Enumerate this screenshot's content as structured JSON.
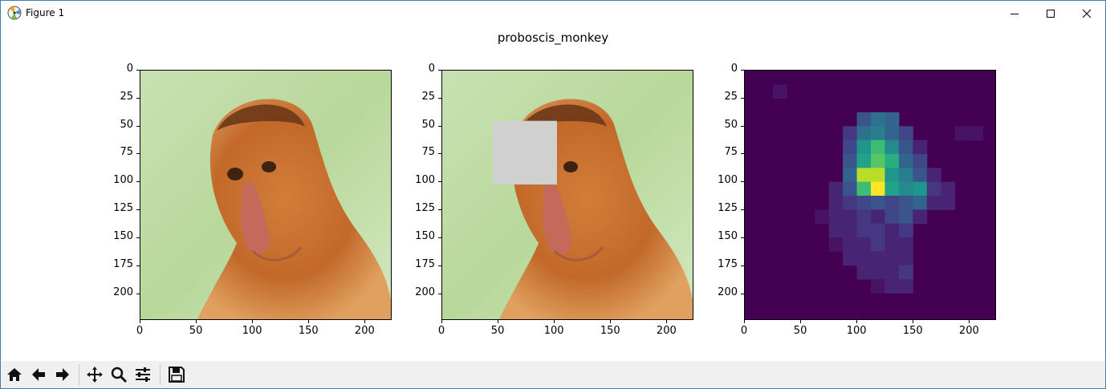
{
  "window": {
    "title": "Figure 1"
  },
  "figure": {
    "suptitle": "proboscis_monkey",
    "panels": [
      {
        "name": "original-image",
        "occluder": null
      },
      {
        "name": "occluded-image",
        "occluder": {
          "x0": 45,
          "x1": 102,
          "y0": 45,
          "y1": 102,
          "color": "#d0d0d0"
        }
      },
      {
        "name": "occlusion-heatmap",
        "colormap": "viridis"
      }
    ],
    "axes": {
      "xlim": [
        0,
        224
      ],
      "ylim": [
        224,
        0
      ],
      "xticks": [
        "0",
        "50",
        "100",
        "150",
        "200"
      ],
      "yticks": [
        "0",
        "25",
        "50",
        "75",
        "100",
        "125",
        "150",
        "175",
        "200"
      ]
    }
  },
  "toolbar": {
    "buttons": [
      "home-icon",
      "back-icon",
      "forward-icon",
      "pan-icon",
      "zoom-icon",
      "configure-subplots-icon",
      "save-icon"
    ]
  },
  "colors": {
    "viridis_low": "#440154",
    "viridis_high": "#fde725",
    "window_border": "#3c7fb1",
    "toolbar_bg": "#f0f0f0"
  }
}
